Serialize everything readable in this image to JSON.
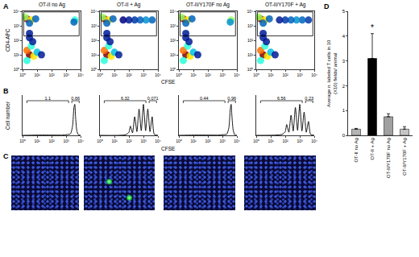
{
  "panel_labels": [
    "A",
    "B",
    "C",
    "D"
  ],
  "flow": {
    "type": "scatter",
    "x_label": "CFSE",
    "y_label": "CD4-APC",
    "log": true,
    "xlim": [
      1,
      10000
    ],
    "ylim": [
      1,
      10000
    ],
    "xticks": [
      {
        "value": 1,
        "label": "10⁰"
      },
      {
        "value": 10,
        "label": "10¹"
      },
      {
        "value": 100,
        "label": "10²"
      },
      {
        "value": 1000,
        "label": "10³"
      },
      {
        "value": 10000,
        "label": "10⁴"
      }
    ],
    "yticks": [
      {
        "value": 1,
        "label": "10⁰"
      },
      {
        "value": 10,
        "label": "10¹"
      },
      {
        "value": 100,
        "label": "10²"
      },
      {
        "value": 1000,
        "label": "10³"
      },
      {
        "value": 10000,
        "label": "10⁴"
      }
    ],
    "plots": [
      {
        "title": "OT-II no Ag",
        "x": [
          2,
          4,
          1.5,
          8,
          3,
          3,
          2,
          6,
          4,
          10,
          2,
          20,
          5,
          3,
          3,
          4000,
          3500
        ],
        "values": [
          3000,
          2500,
          4000,
          3000,
          1500,
          10,
          20,
          8,
          40,
          15,
          4,
          10,
          80,
          300,
          150,
          2500,
          1800
        ],
        "density": [
          1,
          0.7,
          0.6,
          0.3,
          0.3,
          1,
          0.8,
          0.7,
          0.5,
          0.4,
          0.5,
          0.2,
          0.2,
          0.2,
          0.2,
          0.5,
          0.3
        ],
        "gate": {
          "x0": 1.2,
          "x1": 8000,
          "y0": 200,
          "y1": 9000
        }
      },
      {
        "title": "OT-II + Ag",
        "x": [
          2,
          4,
          1.5,
          8,
          3,
          3,
          2,
          6,
          4,
          10,
          2,
          20,
          5,
          3,
          3,
          4000,
          1500,
          600,
          250,
          100,
          40
        ],
        "values": [
          3000,
          2500,
          4000,
          3000,
          1500,
          10,
          20,
          8,
          40,
          15,
          4,
          10,
          80,
          300,
          150,
          2500,
          2500,
          2500,
          2500,
          2500,
          2500
        ],
        "density": [
          1,
          0.7,
          0.6,
          0.3,
          0.3,
          1,
          0.8,
          0.7,
          0.5,
          0.4,
          0.5,
          0.2,
          0.2,
          0.2,
          0.2,
          0.3,
          0.35,
          0.3,
          0.25,
          0.2,
          0.15
        ],
        "gate": {
          "x0": 1.2,
          "x1": 8000,
          "y0": 200,
          "y1": 9000
        }
      },
      {
        "title": "OT-II/Y170F no Ag",
        "x": [
          2,
          4,
          1.5,
          8,
          3,
          3,
          2,
          6,
          4,
          10,
          2,
          20,
          5,
          3,
          3,
          4000,
          3500
        ],
        "values": [
          3000,
          2500,
          4000,
          3000,
          1500,
          10,
          20,
          8,
          40,
          15,
          4,
          10,
          80,
          300,
          150,
          2500,
          1800
        ],
        "density": [
          1,
          0.7,
          0.6,
          0.3,
          0.3,
          1,
          0.8,
          0.7,
          0.5,
          0.4,
          0.5,
          0.2,
          0.2,
          0.2,
          0.2,
          0.6,
          0.35
        ],
        "gate": {
          "x0": 1.2,
          "x1": 8000,
          "y0": 200,
          "y1": 9000
        }
      },
      {
        "title": "OT-II/Y170F + Ag",
        "x": [
          2,
          4,
          1.5,
          8,
          3,
          3,
          2,
          6,
          4,
          10,
          2,
          20,
          5,
          3,
          3,
          4000,
          1500,
          600,
          250,
          100,
          40
        ],
        "values": [
          3000,
          2500,
          4000,
          3000,
          1500,
          10,
          20,
          8,
          40,
          15,
          4,
          10,
          80,
          300,
          150,
          2500,
          2500,
          2500,
          2500,
          2500,
          2500
        ],
        "density": [
          1,
          0.7,
          0.6,
          0.3,
          0.3,
          1,
          0.8,
          0.7,
          0.5,
          0.4,
          0.5,
          0.2,
          0.2,
          0.2,
          0.2,
          0.25,
          0.3,
          0.35,
          0.3,
          0.25,
          0.2
        ],
        "gate": {
          "x0": 1.2,
          "x1": 8000,
          "y0": 200,
          "y1": 9000
        }
      }
    ]
  },
  "histograms": {
    "type": "line",
    "x_label": "CFSE",
    "y_label": "Cell number",
    "log": "x",
    "tick_labels": "x",
    "xlim": [
      1,
      10000
    ],
    "xticks": [
      {
        "value": 1,
        "label": "10⁰"
      },
      {
        "value": 10,
        "label": "10¹"
      },
      {
        "value": 100,
        "label": "10²"
      },
      {
        "value": 1000,
        "label": "10³"
      },
      {
        "value": 10000,
        "label": "10⁴"
      }
    ],
    "ylim": [
      0,
      130
    ],
    "yticks": [],
    "plots": [
      {
        "x": [
          1,
          10,
          100,
          500,
          1000,
          2000,
          2800,
          3500,
          4000,
          4500,
          5500,
          7000,
          10000
        ],
        "values": [
          0,
          1,
          1,
          1,
          2,
          5,
          30,
          90,
          100,
          60,
          15,
          2,
          0
        ],
        "gates": [
          {
            "x0": 2,
            "x1": 1500,
            "value": 1.1
          },
          {
            "x0": 2500,
            "x1": 8000,
            "value": 0.66
          }
        ]
      },
      {
        "x": [
          1,
          60,
          100,
          125,
          177,
          250,
          354,
          500,
          707,
          1000,
          1414,
          2000,
          2828,
          4000,
          5600,
          10000
        ],
        "values": [
          0,
          2,
          10,
          30,
          8,
          60,
          12,
          85,
          15,
          100,
          15,
          85,
          12,
          60,
          3,
          0
        ],
        "gates": [
          {
            "x0": 2,
            "x1": 1500,
            "value": 6.32
          },
          {
            "x0": 2500,
            "x1": 8000,
            "value": 0.071
          }
        ]
      },
      {
        "x": [
          1,
          10,
          100,
          500,
          1000,
          2000,
          2800,
          3500,
          4000,
          4500,
          5500,
          7000,
          10000
        ],
        "values": [
          0,
          1,
          1,
          1,
          2,
          4,
          25,
          85,
          100,
          65,
          18,
          2,
          0
        ],
        "gates": [
          {
            "x0": 2,
            "x1": 1500,
            "value": 0.44
          },
          {
            "x0": 2500,
            "x1": 8000,
            "value": 0.96
          }
        ]
      },
      {
        "x": [
          1,
          60,
          100,
          125,
          177,
          250,
          354,
          500,
          707,
          1000,
          1414,
          2000,
          2828,
          4000,
          5600,
          10000
        ],
        "values": [
          0,
          3,
          12,
          35,
          10,
          65,
          14,
          90,
          16,
          100,
          14,
          75,
          10,
          45,
          3,
          0
        ],
        "gates": [
          {
            "x0": 2,
            "x1": 1500,
            "value": 6.56
          },
          {
            "x0": 2500,
            "x1": 8000,
            "value": 0.23
          }
        ]
      }
    ]
  },
  "images": {
    "labeled_cells": [
      0,
      2,
      0,
      0
    ]
  },
  "chart_data": {
    "type": "bar",
    "y_label": [
      "Average n. labeled T cells in 10",
      "(X10) fields/ animal"
    ],
    "categories": [
      "OT-II no Ag",
      "OT-II + Ag",
      "OT-II/Y170F no Ag",
      "OT-II/Y170F + Ag"
    ],
    "values": [
      0.25,
      3.1,
      0.75,
      0.25
    ],
    "errors": [
      0.03,
      1.0,
      0.12,
      0.1
    ],
    "colors": [
      "#b4b4b4",
      "#000000",
      "#a0a0a0",
      "#c4c4c4"
    ],
    "ylim": [
      0,
      5
    ],
    "yticks": [
      0,
      1,
      2,
      3,
      4,
      5
    ],
    "annotations": [
      {
        "category": "OT-II + Ag",
        "text": "*"
      }
    ]
  }
}
